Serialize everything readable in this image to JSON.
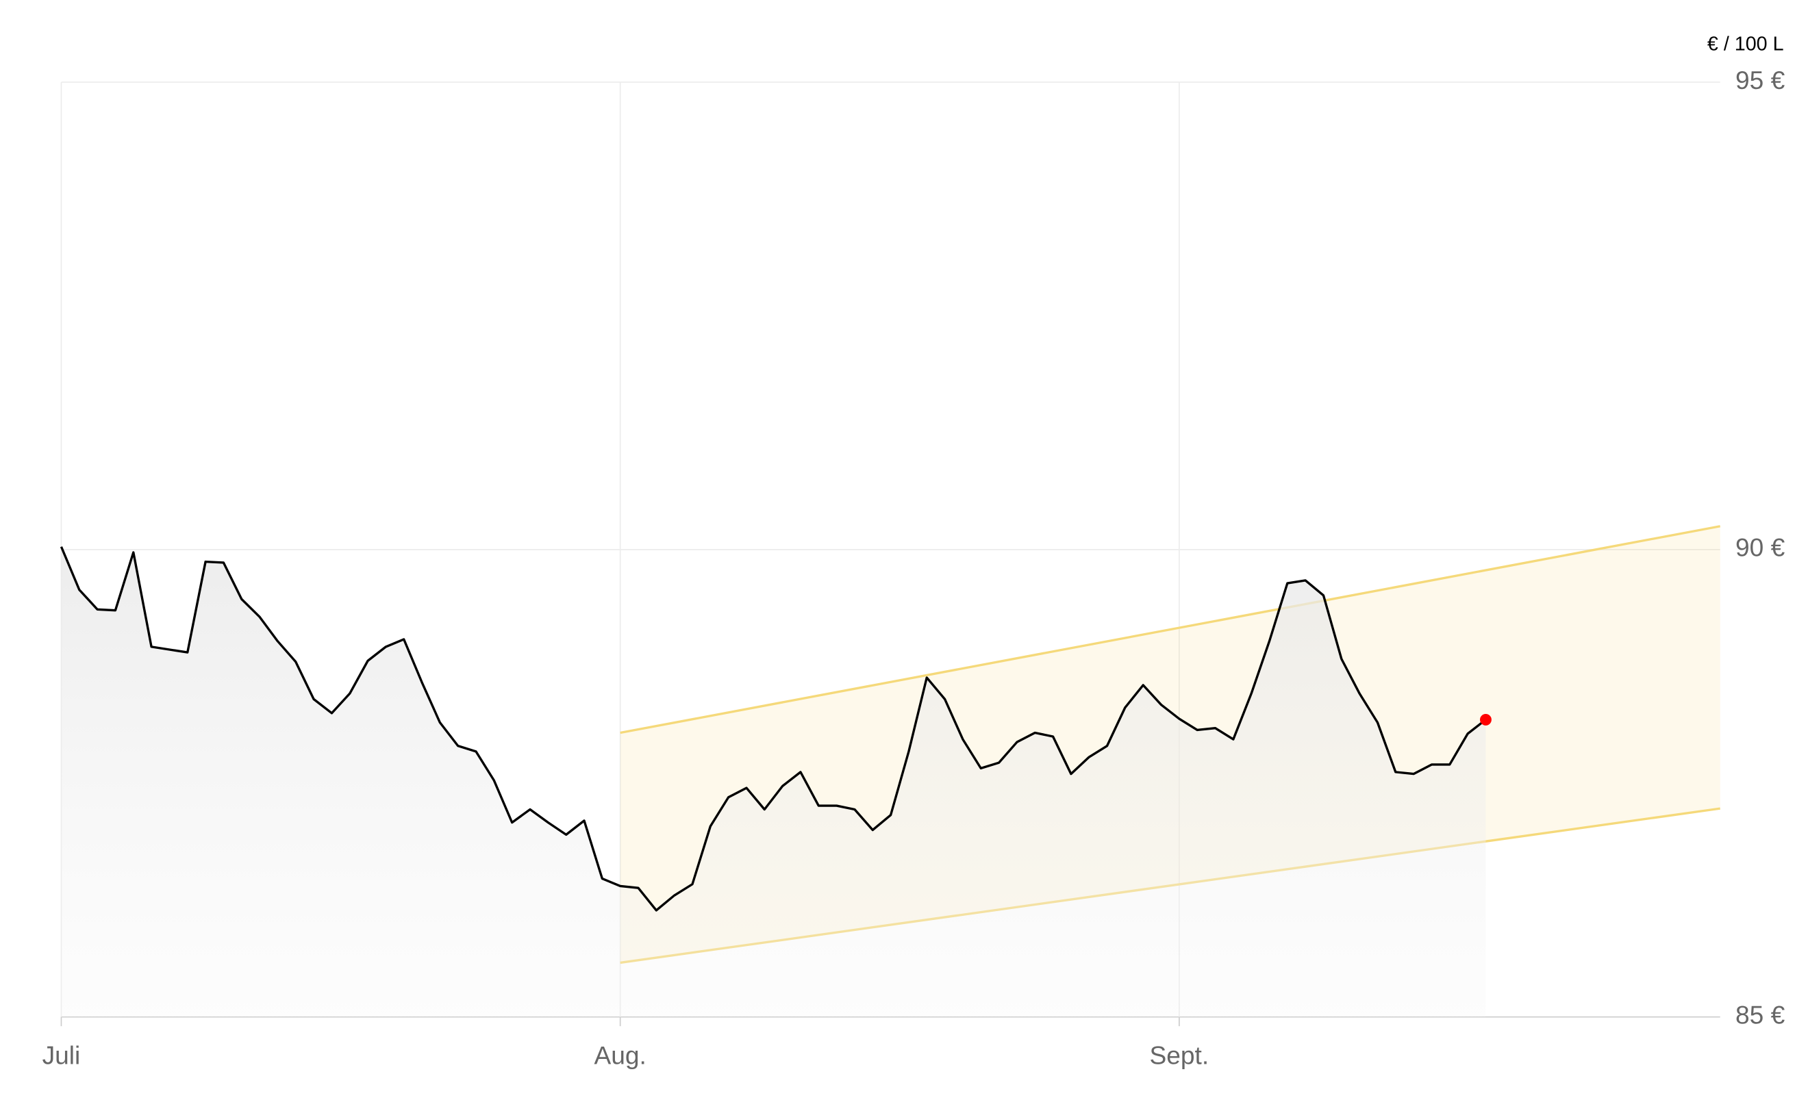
{
  "chart_data": {
    "type": "line",
    "unit_label": "€ / 100 L",
    "x": [
      0,
      1,
      2,
      3,
      4,
      5,
      6,
      7,
      8,
      9,
      10,
      11,
      12,
      13,
      14,
      15,
      16,
      17,
      18,
      19,
      20,
      21,
      22,
      23,
      24,
      25,
      26,
      27,
      28,
      29,
      30,
      31,
      32,
      33,
      34,
      35,
      36,
      37,
      38,
      39,
      40,
      41,
      42,
      43,
      44,
      45,
      46,
      47,
      48,
      49,
      50,
      51,
      52,
      53,
      54,
      55,
      56,
      57,
      58,
      59,
      60,
      61,
      62,
      63,
      64,
      65,
      66,
      67,
      68,
      69,
      70,
      71,
      72,
      73,
      74,
      75,
      76,
      77,
      78,
      79
    ],
    "series": [
      {
        "color": "#000000",
        "values": [
          90.03,
          89.57,
          89.36,
          89.35,
          89.97,
          88.96,
          88.93,
          88.9,
          89.87,
          89.86,
          89.47,
          89.28,
          89.02,
          88.8,
          88.4,
          88.25,
          88.46,
          88.81,
          88.96,
          89.04,
          88.58,
          88.15,
          87.9,
          87.84,
          87.53,
          87.08,
          87.22,
          87.08,
          86.95,
          87.1,
          86.48,
          86.4,
          86.38,
          86.14,
          86.3,
          86.42,
          87.04,
          87.35,
          87.45,
          87.22,
          87.47,
          87.62,
          87.26,
          87.26,
          87.22,
          87.0,
          87.16,
          87.84,
          88.63,
          88.4,
          87.97,
          87.66,
          87.72,
          87.94,
          88.04,
          88.0,
          87.6,
          87.78,
          87.9,
          88.31,
          88.55,
          88.34,
          88.19,
          88.07,
          88.09,
          87.97,
          88.46,
          89.02,
          89.64,
          89.67,
          89.51,
          88.83,
          88.46,
          88.15,
          87.62,
          87.6,
          87.7,
          87.7,
          88.03,
          88.18
        ]
      }
    ],
    "marker_color": "#ff0000",
    "band": {
      "x": [
        31,
        92
      ],
      "upper": [
        88.04,
        90.25
      ],
      "lower": [
        85.58,
        87.23
      ],
      "color": "#f5d97a"
    },
    "xlim": [
      0,
      92
    ],
    "xticks": [
      {
        "value": 0,
        "label": "Juli"
      },
      {
        "value": 31,
        "label": "Aug."
      },
      {
        "value": 62,
        "label": "Sept."
      }
    ],
    "ylim": [
      85,
      95
    ],
    "yticks": [
      {
        "value": 85,
        "label": "85 €"
      },
      {
        "value": 90,
        "label": "90 €"
      },
      {
        "value": 95,
        "label": "95 €"
      }
    ],
    "grid": true
  }
}
